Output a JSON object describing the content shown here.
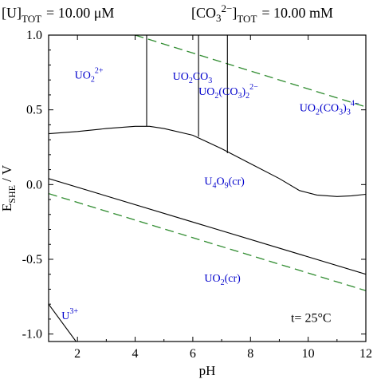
{
  "header": {
    "u_label": "[U]",
    "u_sub": "TOT",
    "u_value": "= 10.00 μM",
    "co3_label": "[CO",
    "co3_sub3": "3",
    "co3_sup": "2−",
    "co3_close": "]",
    "co3_sub": "TOT",
    "co3_value": "= 10.00 mM"
  },
  "colors": {
    "boundary": "#000000",
    "water_limits": "#2e8b2e",
    "species_text": "#0000cc",
    "axis": "#000000"
  },
  "chart_data": {
    "type": "line",
    "xlabel": "pH",
    "ylabel": "E_SHE / V",
    "ylabel_parts": {
      "main": "E",
      "sub": "SHE",
      "rest": " / V"
    },
    "xlim": [
      1,
      12
    ],
    "ylim": [
      -1.05,
      1.0
    ],
    "xticks": [
      2,
      4,
      6,
      8,
      10,
      12
    ],
    "yticks": [
      1.0,
      0.5,
      0.0,
      -0.5,
      -1.0
    ],
    "ytick_labels": [
      "1.0",
      "0.5",
      "0.0",
      "-0.5",
      "-1.0"
    ],
    "xtick_labels": [
      "2",
      "4",
      "6",
      "8",
      "10",
      "12"
    ],
    "boundaries": [
      {
        "id": "upper-boundary",
        "points": [
          [
            1.0,
            0.34
          ],
          [
            2.0,
            0.355
          ],
          [
            3.0,
            0.375
          ],
          [
            4.0,
            0.39
          ],
          [
            4.5,
            0.39
          ],
          [
            5.0,
            0.375
          ],
          [
            6.0,
            0.33
          ],
          [
            7.0,
            0.24
          ],
          [
            8.0,
            0.14
          ],
          [
            9.0,
            0.04
          ],
          [
            9.7,
            -0.04
          ],
          [
            10.3,
            -0.07
          ],
          [
            11.0,
            -0.08
          ],
          [
            11.5,
            -0.075
          ],
          [
            12.0,
            -0.065
          ]
        ]
      },
      {
        "id": "middle-boundary",
        "points": [
          [
            1.0,
            0.04
          ],
          [
            12.0,
            -0.6
          ]
        ]
      },
      {
        "id": "vertical-boundary-1",
        "points": [
          [
            4.4,
            1.0
          ],
          [
            4.4,
            0.39
          ]
        ]
      },
      {
        "id": "vertical-boundary-2",
        "points": [
          [
            6.2,
            1.0
          ],
          [
            6.2,
            0.32
          ]
        ]
      },
      {
        "id": "vertical-boundary-3",
        "points": [
          [
            7.2,
            1.0
          ],
          [
            7.2,
            0.21
          ]
        ]
      },
      {
        "id": "u3-boundary",
        "points": [
          [
            1.0,
            -0.8
          ],
          [
            1.95,
            -1.05
          ]
        ]
      }
    ],
    "water_lines": [
      {
        "id": "oxygen-line",
        "points": [
          [
            4.0,
            1.0
          ],
          [
            12.0,
            0.52
          ]
        ]
      },
      {
        "id": "hydrogen-line",
        "points": [
          [
            1.0,
            -0.06
          ],
          [
            12.0,
            -0.71
          ]
        ]
      }
    ],
    "species": [
      {
        "id": "uo2-2plus",
        "text": "UO",
        "sub": "2",
        "sup": "2+",
        "tail": "",
        "x": 1.9,
        "y": 0.71
      },
      {
        "id": "uo2co3",
        "text": "UO",
        "sub": "2",
        "sup": "",
        "tail": "CO",
        "tail_sub": "3",
        "x": 5.3,
        "y": 0.7
      },
      {
        "id": "uo2-co3-2",
        "text": "UO",
        "sub": "2",
        "sup": "",
        "tail": "(CO",
        "tail_sub": "3",
        "tail2": ")",
        "tail2_sub": "2",
        "tail2_sup": "2−",
        "x": 6.2,
        "y": 0.6
      },
      {
        "id": "uo2-co3-3",
        "text": "UO",
        "sub": "2",
        "sup": "",
        "tail": "(CO",
        "tail_sub": "3",
        "tail2": ")",
        "tail2_sub": "3",
        "tail2_sup": "4−",
        "x": 9.7,
        "y": 0.49
      },
      {
        "id": "u4o9",
        "text": "U",
        "sub": "4",
        "sup": "",
        "tail": "O",
        "tail_sub": "9",
        "tail2": "(cr)",
        "tail2_sub": "",
        "tail2_sup": "",
        "x": 6.4,
        "y": 0.0
      },
      {
        "id": "uo2cr",
        "text": "UO",
        "sub": "2",
        "sup": "",
        "tail": "(cr)",
        "x": 6.4,
        "y": -0.65
      },
      {
        "id": "u3plus",
        "text": "U",
        "sub": "",
        "sup": "3+",
        "tail": "",
        "x": 1.45,
        "y": -0.9
      }
    ],
    "annotation": "t= 25°C"
  }
}
